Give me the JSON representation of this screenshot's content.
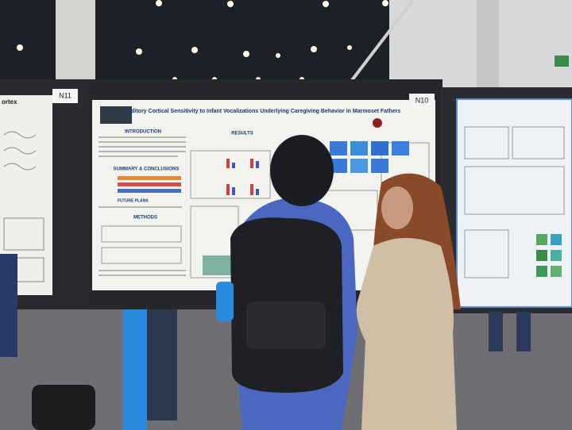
{
  "scene": {
    "booth_labels": [
      "N11",
      "N10"
    ],
    "left_poster": {
      "title_fragment": "ortex"
    },
    "center_poster": {
      "title": "Auditory Cortical Sensitivity to Infant Vocalizations Underlying Caregiving Behavior in Marmoset Fathers",
      "sections": [
        "INTRODUCTION",
        "SUMMARY & CONCLUSIONS",
        "FUTURE PLANS",
        "METHODS",
        "RESULTS"
      ]
    }
  }
}
